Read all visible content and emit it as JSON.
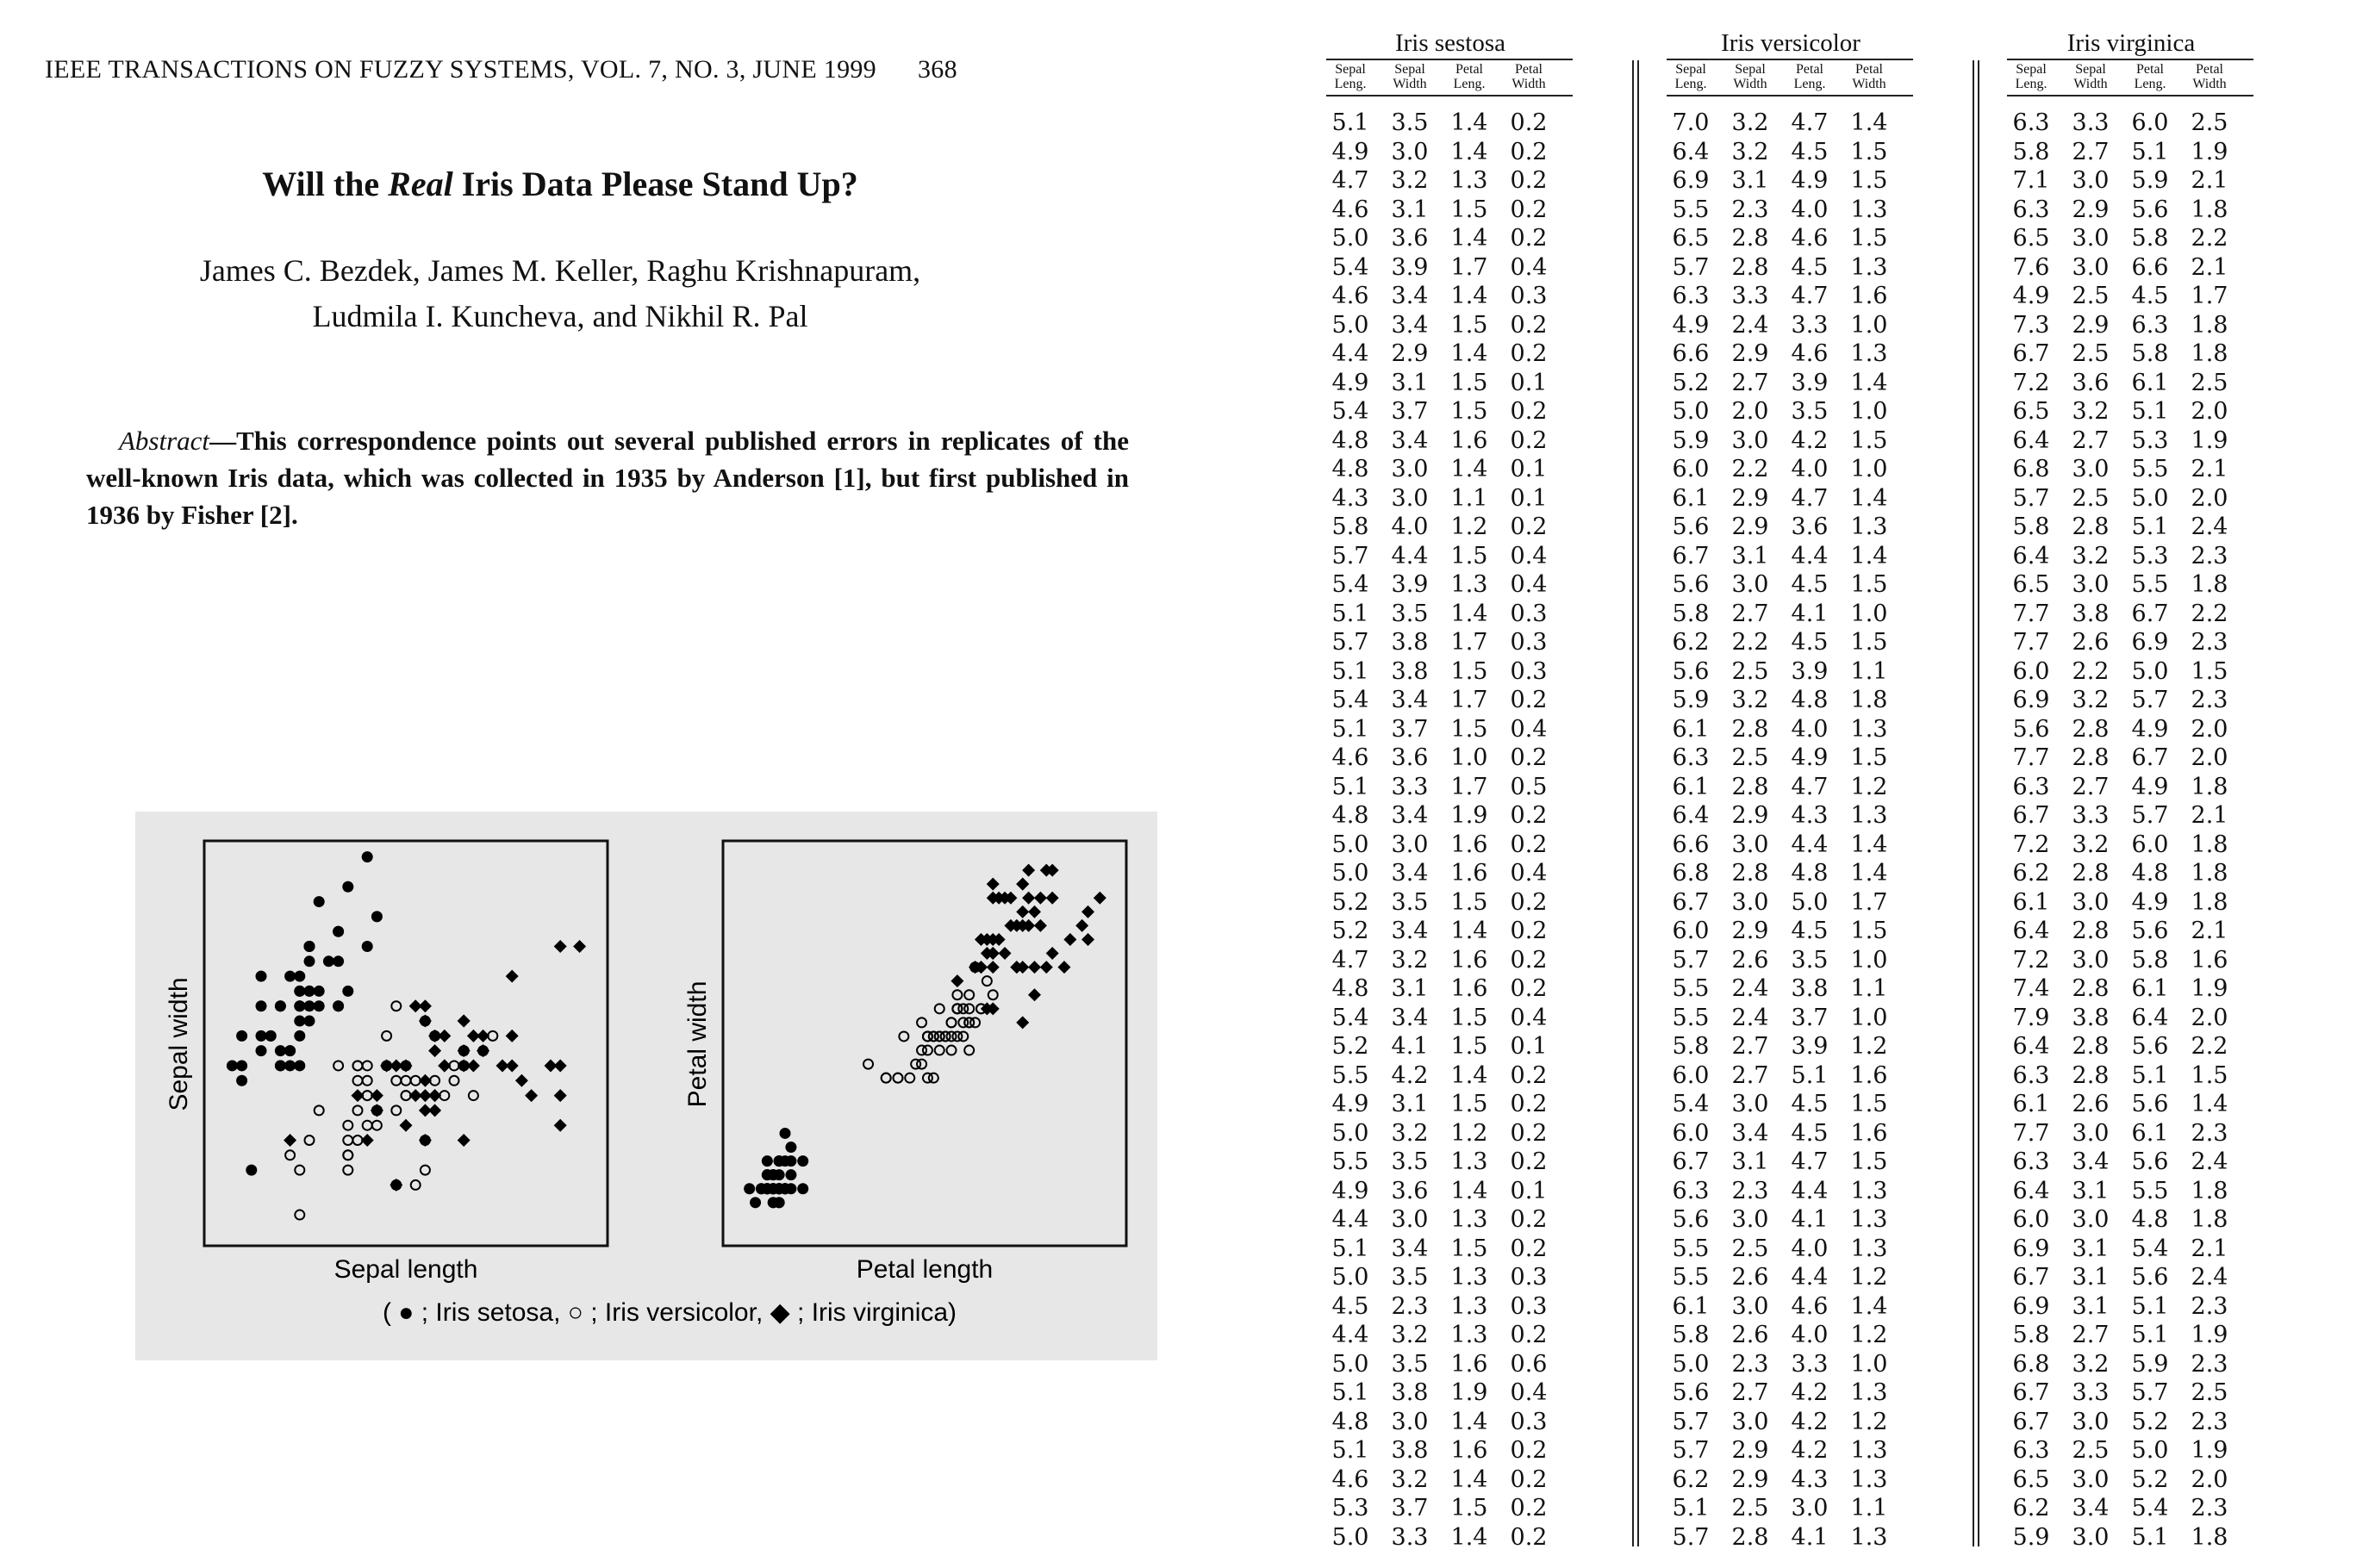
{
  "header": {
    "journal": "IEEE TRANSACTIONS ON FUZZY SYSTEMS, VOL. 7, NO. 3, JUNE 1999",
    "page": "368"
  },
  "title": {
    "pre": "Will the ",
    "emph": "Real",
    "post": " Iris Data Please Stand Up?"
  },
  "authors": {
    "line1": "James C. Bezdek, James M. Keller, Raghu Krishnapuram,",
    "line2": "Ludmila I. Kuncheva, and Nikhil R. Pal"
  },
  "abstract": {
    "lead": "Abstract",
    "text": "—This correspondence points out several published errors in replicates of the well-known Iris data, which was collected in 1935 by Anderson [1], but first published in 1936 by Fisher [2]."
  },
  "figure": {
    "legend": "( ● ; Iris setosa,   ○ ; Iris versicolor,   ◆ ; Iris virginica)",
    "marker_color": "#000000",
    "background": "#e7e7e7"
  },
  "chart_data": [
    {
      "type": "scatter",
      "xlabel": "Sepal length",
      "ylabel": "Sepal width",
      "series_ref": "table.setosa / versicolor / virginica (columns 0 and 1)",
      "series": [
        {
          "name": "Iris setosa",
          "marker": "filled-circle"
        },
        {
          "name": "Iris versicolor",
          "marker": "open-circle"
        },
        {
          "name": "Iris virginica",
          "marker": "filled-diamond"
        }
      ]
    },
    {
      "type": "scatter",
      "xlabel": "Petal length",
      "ylabel": "Petal width",
      "series_ref": "table.setosa / versicolor / virginica (columns 2 and 3)",
      "series": [
        {
          "name": "Iris setosa",
          "marker": "filled-circle"
        },
        {
          "name": "Iris versicolor",
          "marker": "open-circle"
        },
        {
          "name": "Iris virginica",
          "marker": "filled-diamond"
        }
      ]
    }
  ],
  "table": {
    "groups": [
      "Iris sestosa",
      "Iris versicolor",
      "Iris virginica"
    ],
    "col_headers": [
      [
        "Sepal",
        "Leng."
      ],
      [
        "Sepal",
        "Width"
      ],
      [
        "Petal",
        "Leng."
      ],
      [
        "Petal",
        "Width"
      ]
    ],
    "setosa": [
      [
        "5.1",
        "3.5",
        "1.4",
        "0.2"
      ],
      [
        "4.9",
        "3.0",
        "1.4",
        "0.2"
      ],
      [
        "4.7",
        "3.2",
        "1.3",
        "0.2"
      ],
      [
        "4.6",
        "3.1",
        "1.5",
        "0.2"
      ],
      [
        "5.0",
        "3.6",
        "1.4",
        "0.2"
      ],
      [
        "5.4",
        "3.9",
        "1.7",
        "0.4"
      ],
      [
        "4.6",
        "3.4",
        "1.4",
        "0.3"
      ],
      [
        "5.0",
        "3.4",
        "1.5",
        "0.2"
      ],
      [
        "4.4",
        "2.9",
        "1.4",
        "0.2"
      ],
      [
        "4.9",
        "3.1",
        "1.5",
        "0.1"
      ],
      [
        "5.4",
        "3.7",
        "1.5",
        "0.2"
      ],
      [
        "4.8",
        "3.4",
        "1.6",
        "0.2"
      ],
      [
        "4.8",
        "3.0",
        "1.4",
        "0.1"
      ],
      [
        "4.3",
        "3.0",
        "1.1",
        "0.1"
      ],
      [
        "5.8",
        "4.0",
        "1.2",
        "0.2"
      ],
      [
        "5.7",
        "4.4",
        "1.5",
        "0.4"
      ],
      [
        "5.4",
        "3.9",
        "1.3",
        "0.4"
      ],
      [
        "5.1",
        "3.5",
        "1.4",
        "0.3"
      ],
      [
        "5.7",
        "3.8",
        "1.7",
        "0.3"
      ],
      [
        "5.1",
        "3.8",
        "1.5",
        "0.3"
      ],
      [
        "5.4",
        "3.4",
        "1.7",
        "0.2"
      ],
      [
        "5.1",
        "3.7",
        "1.5",
        "0.4"
      ],
      [
        "4.6",
        "3.6",
        "1.0",
        "0.2"
      ],
      [
        "5.1",
        "3.3",
        "1.7",
        "0.5"
      ],
      [
        "4.8",
        "3.4",
        "1.9",
        "0.2"
      ],
      [
        "5.0",
        "3.0",
        "1.6",
        "0.2"
      ],
      [
        "5.0",
        "3.4",
        "1.6",
        "0.4"
      ],
      [
        "5.2",
        "3.5",
        "1.5",
        "0.2"
      ],
      [
        "5.2",
        "3.4",
        "1.4",
        "0.2"
      ],
      [
        "4.7",
        "3.2",
        "1.6",
        "0.2"
      ],
      [
        "4.8",
        "3.1",
        "1.6",
        "0.2"
      ],
      [
        "5.4",
        "3.4",
        "1.5",
        "0.4"
      ],
      [
        "5.2",
        "4.1",
        "1.5",
        "0.1"
      ],
      [
        "5.5",
        "4.2",
        "1.4",
        "0.2"
      ],
      [
        "4.9",
        "3.1",
        "1.5",
        "0.2"
      ],
      [
        "5.0",
        "3.2",
        "1.2",
        "0.2"
      ],
      [
        "5.5",
        "3.5",
        "1.3",
        "0.2"
      ],
      [
        "4.9",
        "3.6",
        "1.4",
        "0.1"
      ],
      [
        "4.4",
        "3.0",
        "1.3",
        "0.2"
      ],
      [
        "5.1",
        "3.4",
        "1.5",
        "0.2"
      ],
      [
        "5.0",
        "3.5",
        "1.3",
        "0.3"
      ],
      [
        "4.5",
        "2.3",
        "1.3",
        "0.3"
      ],
      [
        "4.4",
        "3.2",
        "1.3",
        "0.2"
      ],
      [
        "5.0",
        "3.5",
        "1.6",
        "0.6"
      ],
      [
        "5.1",
        "3.8",
        "1.9",
        "0.4"
      ],
      [
        "4.8",
        "3.0",
        "1.4",
        "0.3"
      ],
      [
        "5.1",
        "3.8",
        "1.6",
        "0.2"
      ],
      [
        "4.6",
        "3.2",
        "1.4",
        "0.2"
      ],
      [
        "5.3",
        "3.7",
        "1.5",
        "0.2"
      ],
      [
        "5.0",
        "3.3",
        "1.4",
        "0.2"
      ]
    ],
    "versicolor": [
      [
        "7.0",
        "3.2",
        "4.7",
        "1.4"
      ],
      [
        "6.4",
        "3.2",
        "4.5",
        "1.5"
      ],
      [
        "6.9",
        "3.1",
        "4.9",
        "1.5"
      ],
      [
        "5.5",
        "2.3",
        "4.0",
        "1.3"
      ],
      [
        "6.5",
        "2.8",
        "4.6",
        "1.5"
      ],
      [
        "5.7",
        "2.8",
        "4.5",
        "1.3"
      ],
      [
        "6.3",
        "3.3",
        "4.7",
        "1.6"
      ],
      [
        "4.9",
        "2.4",
        "3.3",
        "1.0"
      ],
      [
        "6.6",
        "2.9",
        "4.6",
        "1.3"
      ],
      [
        "5.2",
        "2.7",
        "3.9",
        "1.4"
      ],
      [
        "5.0",
        "2.0",
        "3.5",
        "1.0"
      ],
      [
        "5.9",
        "3.0",
        "4.2",
        "1.5"
      ],
      [
        "6.0",
        "2.2",
        "4.0",
        "1.0"
      ],
      [
        "6.1",
        "2.9",
        "4.7",
        "1.4"
      ],
      [
        "5.6",
        "2.9",
        "3.6",
        "1.3"
      ],
      [
        "6.7",
        "3.1",
        "4.4",
        "1.4"
      ],
      [
        "5.6",
        "3.0",
        "4.5",
        "1.5"
      ],
      [
        "5.8",
        "2.7",
        "4.1",
        "1.0"
      ],
      [
        "6.2",
        "2.2",
        "4.5",
        "1.5"
      ],
      [
        "5.6",
        "2.5",
        "3.9",
        "1.1"
      ],
      [
        "5.9",
        "3.2",
        "4.8",
        "1.8"
      ],
      [
        "6.1",
        "2.8",
        "4.0",
        "1.3"
      ],
      [
        "6.3",
        "2.5",
        "4.9",
        "1.5"
      ],
      [
        "6.1",
        "2.8",
        "4.7",
        "1.2"
      ],
      [
        "6.4",
        "2.9",
        "4.3",
        "1.3"
      ],
      [
        "6.6",
        "3.0",
        "4.4",
        "1.4"
      ],
      [
        "6.8",
        "2.8",
        "4.8",
        "1.4"
      ],
      [
        "6.7",
        "3.0",
        "5.0",
        "1.7"
      ],
      [
        "6.0",
        "2.9",
        "4.5",
        "1.5"
      ],
      [
        "5.7",
        "2.6",
        "3.5",
        "1.0"
      ],
      [
        "5.5",
        "2.4",
        "3.8",
        "1.1"
      ],
      [
        "5.5",
        "2.4",
        "3.7",
        "1.0"
      ],
      [
        "5.8",
        "2.7",
        "3.9",
        "1.2"
      ],
      [
        "6.0",
        "2.7",
        "5.1",
        "1.6"
      ],
      [
        "5.4",
        "3.0",
        "4.5",
        "1.5"
      ],
      [
        "6.0",
        "3.4",
        "4.5",
        "1.6"
      ],
      [
        "6.7",
        "3.1",
        "4.7",
        "1.5"
      ],
      [
        "6.3",
        "2.3",
        "4.4",
        "1.3"
      ],
      [
        "5.6",
        "3.0",
        "4.1",
        "1.3"
      ],
      [
        "5.5",
        "2.5",
        "4.0",
        "1.3"
      ],
      [
        "5.5",
        "2.6",
        "4.4",
        "1.2"
      ],
      [
        "6.1",
        "3.0",
        "4.6",
        "1.4"
      ],
      [
        "5.8",
        "2.6",
        "4.0",
        "1.2"
      ],
      [
        "5.0",
        "2.3",
        "3.3",
        "1.0"
      ],
      [
        "5.6",
        "2.7",
        "4.2",
        "1.3"
      ],
      [
        "5.7",
        "3.0",
        "4.2",
        "1.2"
      ],
      [
        "5.7",
        "2.9",
        "4.2",
        "1.3"
      ],
      [
        "6.2",
        "2.9",
        "4.3",
        "1.3"
      ],
      [
        "5.1",
        "2.5",
        "3.0",
        "1.1"
      ],
      [
        "5.7",
        "2.8",
        "4.1",
        "1.3"
      ]
    ],
    "virginica": [
      [
        "6.3",
        "3.3",
        "6.0",
        "2.5"
      ],
      [
        "5.8",
        "2.7",
        "5.1",
        "1.9"
      ],
      [
        "7.1",
        "3.0",
        "5.9",
        "2.1"
      ],
      [
        "6.3",
        "2.9",
        "5.6",
        "1.8"
      ],
      [
        "6.5",
        "3.0",
        "5.8",
        "2.2"
      ],
      [
        "7.6",
        "3.0",
        "6.6",
        "2.1"
      ],
      [
        "4.9",
        "2.5",
        "4.5",
        "1.7"
      ],
      [
        "7.3",
        "2.9",
        "6.3",
        "1.8"
      ],
      [
        "6.7",
        "2.5",
        "5.8",
        "1.8"
      ],
      [
        "7.2",
        "3.6",
        "6.1",
        "2.5"
      ],
      [
        "6.5",
        "3.2",
        "5.1",
        "2.0"
      ],
      [
        "6.4",
        "2.7",
        "5.3",
        "1.9"
      ],
      [
        "6.8",
        "3.0",
        "5.5",
        "2.1"
      ],
      [
        "5.7",
        "2.5",
        "5.0",
        "2.0"
      ],
      [
        "5.8",
        "2.8",
        "5.1",
        "2.4"
      ],
      [
        "6.4",
        "3.2",
        "5.3",
        "2.3"
      ],
      [
        "6.5",
        "3.0",
        "5.5",
        "1.8"
      ],
      [
        "7.7",
        "3.8",
        "6.7",
        "2.2"
      ],
      [
        "7.7",
        "2.6",
        "6.9",
        "2.3"
      ],
      [
        "6.0",
        "2.2",
        "5.0",
        "1.5"
      ],
      [
        "6.9",
        "3.2",
        "5.7",
        "2.3"
      ],
      [
        "5.6",
        "2.8",
        "4.9",
        "2.0"
      ],
      [
        "7.7",
        "2.8",
        "6.7",
        "2.0"
      ],
      [
        "6.3",
        "2.7",
        "4.9",
        "1.8"
      ],
      [
        "6.7",
        "3.3",
        "5.7",
        "2.1"
      ],
      [
        "7.2",
        "3.2",
        "6.0",
        "1.8"
      ],
      [
        "6.2",
        "2.8",
        "4.8",
        "1.8"
      ],
      [
        "6.1",
        "3.0",
        "4.9",
        "1.8"
      ],
      [
        "6.4",
        "2.8",
        "5.6",
        "2.1"
      ],
      [
        "7.2",
        "3.0",
        "5.8",
        "1.6"
      ],
      [
        "7.4",
        "2.8",
        "6.1",
        "1.9"
      ],
      [
        "7.9",
        "3.8",
        "6.4",
        "2.0"
      ],
      [
        "6.4",
        "2.8",
        "5.6",
        "2.2"
      ],
      [
        "6.3",
        "2.8",
        "5.1",
        "1.5"
      ],
      [
        "6.1",
        "2.6",
        "5.6",
        "1.4"
      ],
      [
        "7.7",
        "3.0",
        "6.1",
        "2.3"
      ],
      [
        "6.3",
        "3.4",
        "5.6",
        "2.4"
      ],
      [
        "6.4",
        "3.1",
        "5.5",
        "1.8"
      ],
      [
        "6.0",
        "3.0",
        "4.8",
        "1.8"
      ],
      [
        "6.9",
        "3.1",
        "5.4",
        "2.1"
      ],
      [
        "6.7",
        "3.1",
        "5.6",
        "2.4"
      ],
      [
        "6.9",
        "3.1",
        "5.1",
        "2.3"
      ],
      [
        "5.8",
        "2.7",
        "5.1",
        "1.9"
      ],
      [
        "6.8",
        "3.2",
        "5.9",
        "2.3"
      ],
      [
        "6.7",
        "3.3",
        "5.7",
        "2.5"
      ],
      [
        "6.7",
        "3.0",
        "5.2",
        "2.3"
      ],
      [
        "6.3",
        "2.5",
        "5.0",
        "1.9"
      ],
      [
        "6.5",
        "3.0",
        "5.2",
        "2.0"
      ],
      [
        "6.2",
        "3.4",
        "5.4",
        "2.3"
      ],
      [
        "5.9",
        "3.0",
        "5.1",
        "1.8"
      ]
    ]
  }
}
